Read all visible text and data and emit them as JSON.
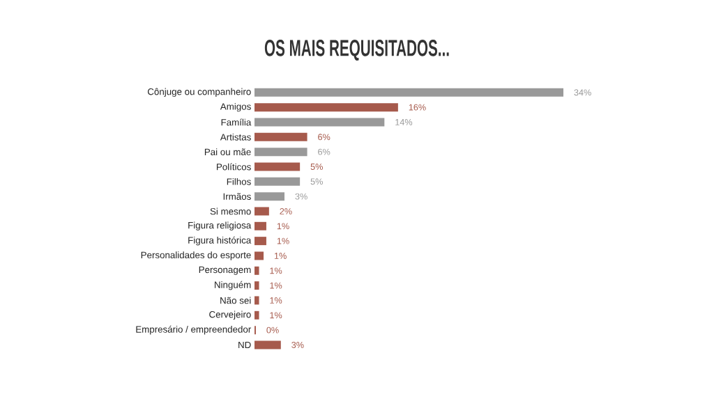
{
  "chart_data": {
    "type": "bar",
    "orientation": "horizontal",
    "title": "OS MAIS REQUISITADOS...",
    "categories": [
      "Cônjuge ou companheiro",
      "Amigos",
      "Família",
      "Artistas",
      "Pai ou mãe",
      "Políticos",
      "Filhos",
      "Irmãos",
      "Si mesmo",
      "Figura religiosa",
      "Figura histórica",
      "Personalidades do esporte",
      "Personagem",
      "Ninguém",
      "Não sei",
      "Cervejeiro",
      "Empresário / empreendedor",
      "ND"
    ],
    "values": [
      34,
      15.8,
      14.3,
      5.8,
      5.8,
      5.0,
      5.0,
      3.3,
      1.6,
      1.3,
      1.3,
      1.0,
      0.5,
      0.5,
      0.5,
      0.5,
      0.15,
      2.9
    ],
    "value_labels": [
      "34%",
      "16%",
      "14%",
      "6%",
      "6%",
      "5%",
      "5%",
      "3%",
      "2%",
      "1%",
      "1%",
      "1%",
      "1%",
      "1%",
      "1%",
      "1%",
      "0%",
      "3%"
    ],
    "colors": [
      "#999999",
      "#a65a4c",
      "#999999",
      "#a65a4c",
      "#999999",
      "#a65a4c",
      "#999999",
      "#999999",
      "#a65a4c",
      "#a65a4c",
      "#a65a4c",
      "#a65a4c",
      "#a65a4c",
      "#a65a4c",
      "#a65a4c",
      "#a65a4c",
      "#a65a4c",
      "#a65a4c"
    ]
  }
}
